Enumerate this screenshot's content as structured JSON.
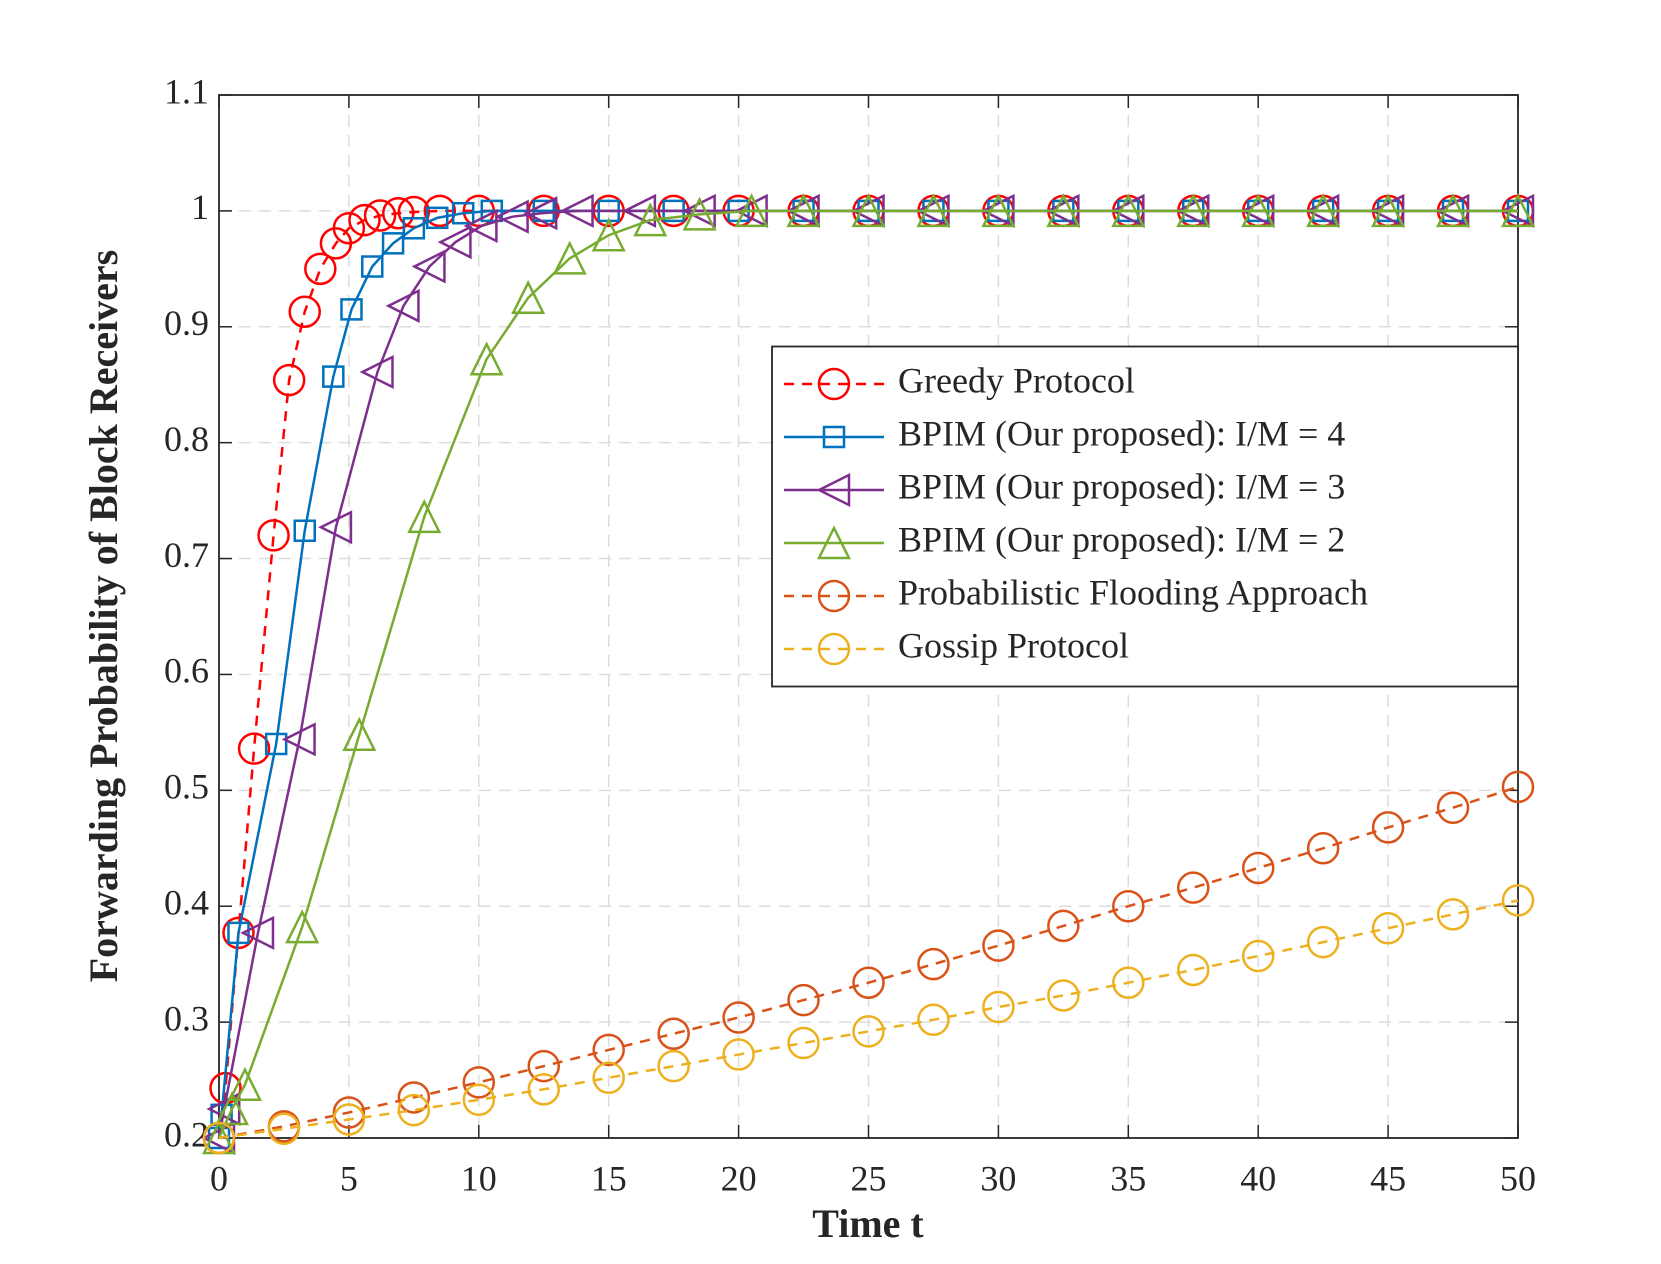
{
  "chart_data": {
    "type": "line",
    "xlabel": "Time t",
    "ylabel": "Forwarding Probability of Block Receivers",
    "xlim": [
      0,
      50
    ],
    "ylim": [
      0.2,
      1.1
    ],
    "xticks": [
      0,
      5,
      10,
      15,
      20,
      25,
      30,
      35,
      40,
      45,
      50
    ],
    "yticks": [
      0.2,
      0.3,
      0.4,
      0.5,
      0.6,
      0.7,
      0.8,
      0.9,
      1,
      1.1
    ],
    "grid": true,
    "legend": "east",
    "series": [
      {
        "name": "Greedy Protocol",
        "color": "#ff0000",
        "marker": "circle",
        "dash": true,
        "x": [
          0,
          0.25,
          0.75,
          1.35,
          2.1,
          2.7,
          3.3,
          3.9,
          4.5,
          5.0,
          5.6,
          6.2,
          6.9,
          7.5,
          8.5,
          10,
          12.5,
          15,
          17.5,
          20,
          22.5,
          25,
          27.5,
          30,
          32.5,
          35,
          37.5,
          40,
          42.5,
          45,
          47.5,
          50
        ],
        "values": [
          0.2,
          0.243,
          0.377,
          0.536,
          0.72,
          0.854,
          0.913,
          0.95,
          0.972,
          0.985,
          0.992,
          0.996,
          0.998,
          0.999,
          1,
          1,
          1,
          1,
          1,
          1,
          1,
          1,
          1,
          1,
          1,
          1,
          1,
          1,
          1,
          1,
          1,
          1
        ]
      },
      {
        "name": "BPIM (Our proposed): I/M = 4",
        "color": "#0072bd",
        "marker": "square",
        "dash": false,
        "x": [
          0,
          0.1,
          0.75,
          2.2,
          3.3,
          4.4,
          5.1,
          5.9,
          6.7,
          7.5,
          8.4,
          9.4,
          10.5,
          12.5,
          15,
          17.5,
          20,
          22.5,
          25,
          27.5,
          30,
          32.5,
          35,
          37.5,
          40,
          42.5,
          45,
          47.5,
          50
        ],
        "values": [
          0.2,
          0.22,
          0.377,
          0.54,
          0.724,
          0.857,
          0.915,
          0.952,
          0.972,
          0.985,
          0.994,
          0.998,
          1,
          1,
          1,
          1,
          1,
          1,
          1,
          1,
          1,
          1,
          1,
          1,
          1,
          1,
          1,
          1,
          1
        ]
      },
      {
        "name": "BPIM (Our proposed): I/M = 3",
        "color": "#7e2f8e",
        "marker": "triangle-left",
        "dash": false,
        "x": [
          0,
          0.2,
          1.5,
          3.1,
          4.5,
          6.1,
          7.1,
          8.1,
          9.1,
          10.1,
          11.3,
          12.4,
          13.8,
          16.2,
          18.5,
          20.5,
          22.5,
          25,
          27.5,
          30,
          32.5,
          35,
          37.5,
          40,
          42.5,
          45,
          47.5,
          50
        ],
        "values": [
          0.2,
          0.225,
          0.377,
          0.544,
          0.727,
          0.861,
          0.918,
          0.952,
          0.973,
          0.987,
          0.995,
          0.998,
          1,
          1,
          1,
          1,
          1,
          1,
          1,
          1,
          1,
          1,
          1,
          1,
          1,
          1,
          1,
          1
        ]
      },
      {
        "name": "BPIM (Our proposed): I/M = 2",
        "color": "#77ac30",
        "marker": "triangle-up",
        "dash": false,
        "x": [
          0,
          0.5,
          1,
          3.2,
          5.4,
          7.9,
          10.3,
          11.9,
          13.5,
          15,
          16.6,
          18.5,
          20.5,
          22.5,
          25,
          27.5,
          30,
          32.5,
          35,
          37.5,
          40,
          42.5,
          45,
          47.5,
          50
        ],
        "values": [
          0.2,
          0.225,
          0.246,
          0.382,
          0.548,
          0.736,
          0.872,
          0.925,
          0.959,
          0.979,
          0.992,
          0.997,
          1,
          1,
          1,
          1,
          1,
          1,
          1,
          1,
          1,
          1,
          1,
          1,
          1
        ]
      },
      {
        "name": "Probabilistic Flooding Approach",
        "color": "#d95319",
        "marker": "circle",
        "dash": true,
        "x": [
          0,
          2.5,
          5,
          7.5,
          10,
          12.5,
          15,
          17.5,
          20,
          22.5,
          25,
          27.5,
          30,
          32.5,
          35,
          37.5,
          40,
          42.5,
          45,
          47.5,
          50
        ],
        "values": [
          0.2,
          0.21,
          0.222,
          0.235,
          0.248,
          0.262,
          0.276,
          0.29,
          0.304,
          0.319,
          0.334,
          0.35,
          0.366,
          0.383,
          0.4,
          0.416,
          0.433,
          0.45,
          0.468,
          0.485,
          0.503
        ]
      },
      {
        "name": "Gossip Protocol",
        "color": "#edb120",
        "marker": "circle",
        "dash": true,
        "x": [
          0,
          2.5,
          5,
          7.5,
          10,
          12.5,
          15,
          17.5,
          20,
          22.5,
          25,
          27.5,
          30,
          32.5,
          35,
          37.5,
          40,
          42.5,
          45,
          47.5,
          50
        ],
        "values": [
          0.2,
          0.208,
          0.216,
          0.224,
          0.233,
          0.242,
          0.252,
          0.262,
          0.272,
          0.282,
          0.292,
          0.302,
          0.313,
          0.323,
          0.334,
          0.345,
          0.357,
          0.369,
          0.381,
          0.393,
          0.405
        ]
      }
    ]
  }
}
